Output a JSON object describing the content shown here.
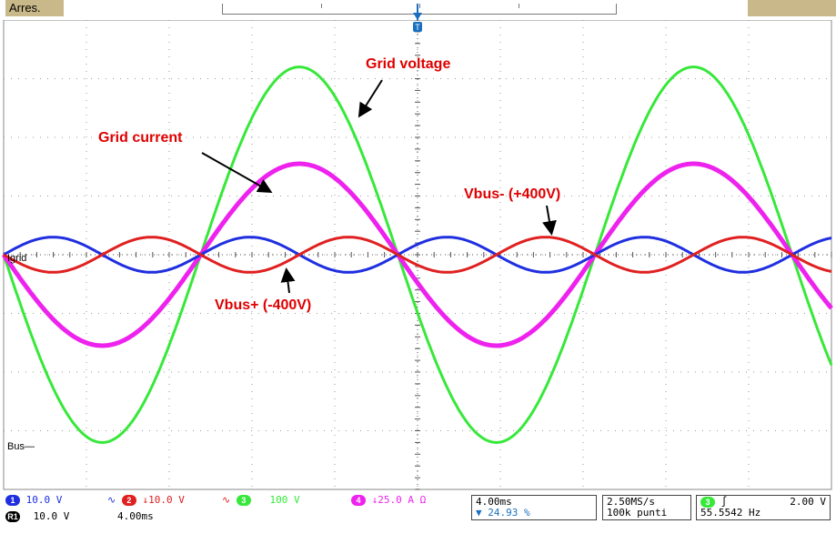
{
  "status": {
    "label": "Arres."
  },
  "annotations": {
    "grid_voltage": "Grid voltage",
    "grid_current": "Grid current",
    "vbus_minus": "Vbus- (+400V)",
    "vbus_plus": "Vbus+ (-400V)"
  },
  "channel_labels": {
    "igrid": "Igrid",
    "bus": "Bus"
  },
  "colors": {
    "ch1": "#1f2fe0",
    "ch2": "#e02020",
    "ch3": "#37e83a",
    "ch4": "#ee22ee",
    "grid": "#9a9a9a",
    "annotation": "#e00000"
  },
  "chart_data": {
    "type": "line",
    "title": "",
    "xlabel": "",
    "ylabel": "",
    "grid": true,
    "x_divisions": 10,
    "y_divisions": 8,
    "series": [
      {
        "channel": "3",
        "color": "#37e83a",
        "shape": "sine",
        "amplitude_div": 3.2,
        "cycles": 2.1,
        "phase_deg": 180
      },
      {
        "channel": "4",
        "color": "#ee22ee",
        "shape": "sine",
        "amplitude_div": 1.55,
        "cycles": 2.1,
        "phase_deg": 180
      },
      {
        "channel": "1",
        "color": "#1f2fe0",
        "shape": "sine",
        "amplitude_div": 0.3,
        "cycles": 4.2,
        "phase_deg": 0
      },
      {
        "channel": "2",
        "color": "#e02020",
        "shape": "sine",
        "amplitude_div": 0.3,
        "cycles": 4.2,
        "phase_deg": 180
      }
    ]
  },
  "footer": {
    "ch1_num": "1",
    "ch1_scale": "10.0 V",
    "ch2_num": "2",
    "ch2_scale": "↓10.0 V",
    "ch3_num": "3",
    "ch3_scale": "100 V",
    "ch4_num": "4",
    "ch4_scale": "↓25.0 A Ω",
    "r1_num": "R1",
    "r1_scale": "10.0 V",
    "r1_time": "4.00ms",
    "timebase": "4.00ms",
    "trigger_pos": "24.93 %",
    "sample_rate": "2.50MS/s",
    "record_len": "100k punti",
    "trig_ch": "3",
    "trig_level": "2.00 V",
    "trig_freq": "55.5542 Hz"
  }
}
